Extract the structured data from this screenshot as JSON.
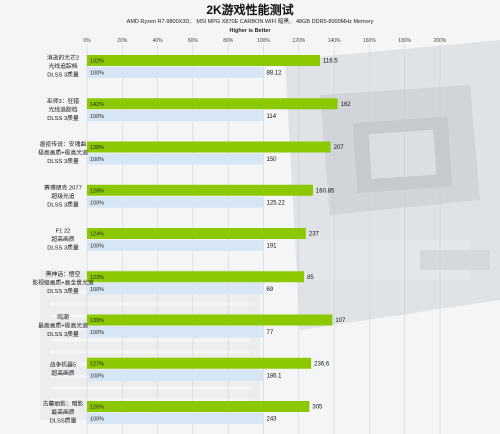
{
  "chart_data": {
    "type": "bar",
    "title": "2K游戏性能测试",
    "subtitle": "AMD Ryzen R7-9800X3D、 MSI MPG X870E CARBON WIFI 暗黑、 48GB DDR5-8000MHz Memory",
    "note": "Higher is Better",
    "x_ticks": [
      "0%",
      "20%",
      "40%",
      "60%",
      "80%",
      "100%",
      "120%",
      "140%",
      "160%",
      "180%",
      "200%"
    ],
    "xlim": [
      0,
      200
    ],
    "series": [
      {
        "color": "#8cc800"
      },
      {
        "color": "#d6e6f5"
      }
    ],
    "categories": [
      {
        "label": [
          "消逝的光芒2",
          "光线追踪档",
          "DLSS 3质量"
        ],
        "values": [
          116.5,
          88.12
        ],
        "pct": [
          "132%",
          "100%"
        ],
        "pct_num": [
          132,
          100
        ]
      },
      {
        "label": [
          "巫师3：狂猎",
          "光线追踪档",
          "DLSS 3质量"
        ],
        "values": [
          162,
          114
        ],
        "pct": [
          "142%",
          "100%"
        ],
        "pct_num": [
          142,
          100
        ]
      },
      {
        "label": [
          "瘟疫传说：安魂曲",
          "极高画质+极高光追",
          "DLSS 3质量"
        ],
        "values": [
          207,
          150
        ],
        "pct": [
          "138%",
          "100%"
        ],
        "pct_num": [
          138,
          100
        ]
      },
      {
        "label": [
          "赛博朋克 2077",
          "超级光追",
          "DLSS 3质量"
        ],
        "values": [
          160.85,
          125.22
        ],
        "pct": [
          "128%",
          "100%"
        ],
        "pct_num": [
          128,
          100
        ]
      },
      {
        "label": [
          "F1 22",
          "超高画质",
          "DLSS 3质量"
        ],
        "values": [
          237,
          191
        ],
        "pct": [
          "124%",
          "100%"
        ],
        "pct_num": [
          124,
          100
        ]
      },
      {
        "label": [
          "黑神话：悟空",
          "影视级画质+高全景光追",
          "DLSS 3质量"
        ],
        "values": [
          85,
          69
        ],
        "pct": [
          "123%",
          "100%"
        ],
        "pct_num": [
          123,
          100
        ]
      },
      {
        "label": [
          "鸣潮",
          "最高画质+极高光追",
          "DLSS 3质量"
        ],
        "values": [
          107,
          77
        ],
        "pct": [
          "139%",
          "100%"
        ],
        "pct_num": [
          139,
          100
        ]
      },
      {
        "label": [
          "战争机器5",
          "超高画质"
        ],
        "values": [
          236.6,
          186.1
        ],
        "pct": [
          "127%",
          "100%"
        ],
        "pct_num": [
          127,
          100
        ]
      },
      {
        "label": [
          "古墓丽影：暗影",
          "最高画质",
          "DLSS质量"
        ],
        "values": [
          305,
          243
        ],
        "pct": [
          "126%",
          "100%"
        ],
        "pct_num": [
          126,
          100
        ]
      }
    ]
  }
}
